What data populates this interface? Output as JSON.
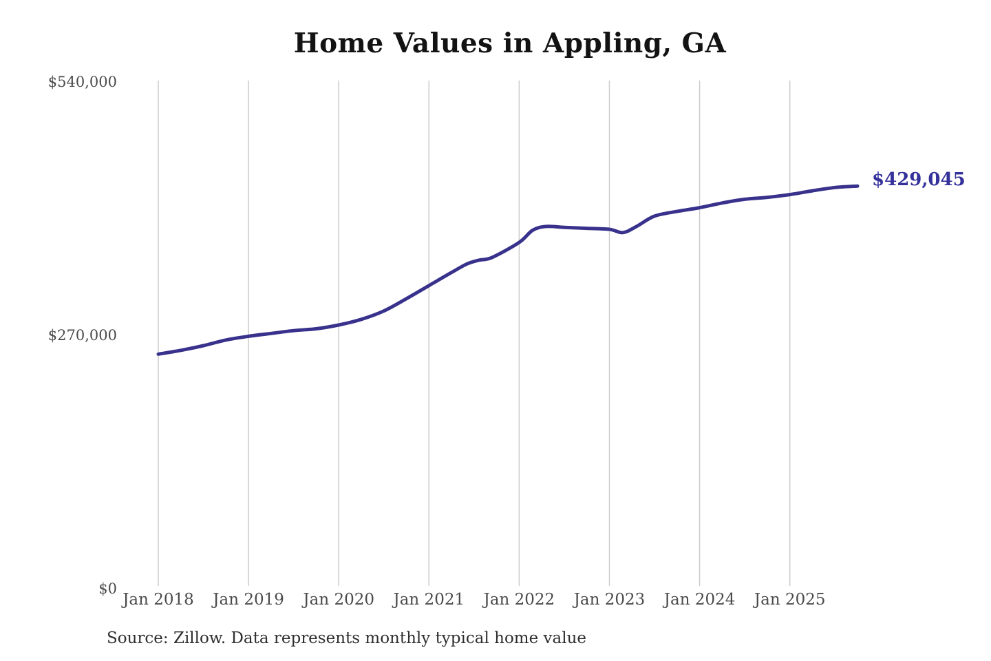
{
  "title": "Home Values in Appling, GA",
  "source_note": "Source: Zillow. Data represents monthly typical home value",
  "colors": {
    "line": "#38328c",
    "value_label": "#34319b",
    "grid": "#cccccc",
    "axis_label": "#4a4a4a",
    "title": "#131313",
    "source": "#2e2e2e",
    "background": "#ffffff"
  },
  "chart_data": {
    "type": "line",
    "title": "Home Values in Appling, GA",
    "xlabel": "",
    "ylabel": "",
    "grid": "vertical-only",
    "legend": false,
    "xlim": [
      2018.0,
      2026.0
    ],
    "ylim": [
      0,
      540000
    ],
    "y_ticks": [
      {
        "label": "$540,000",
        "value": 540000
      },
      {
        "label": "$270,000",
        "value": 270000
      },
      {
        "label": "$0",
        "value": 0
      }
    ],
    "x_ticks": [
      {
        "label": "Jan 2018",
        "year": 2018
      },
      {
        "label": "Jan 2019",
        "year": 2019
      },
      {
        "label": "Jan 2020",
        "year": 2020
      },
      {
        "label": "Jan 2021",
        "year": 2021
      },
      {
        "label": "Jan 2022",
        "year": 2022
      },
      {
        "label": "Jan 2023",
        "year": 2023
      },
      {
        "label": "Jan 2024",
        "year": 2024
      },
      {
        "label": "Jan 2025",
        "year": 2025
      }
    ],
    "end_label": "$429,045",
    "end_value": 429045,
    "series": [
      {
        "name": "Monthly typical home value",
        "points": [
          [
            2018.0,
            250000
          ],
          [
            2018.25,
            254000
          ],
          [
            2018.5,
            259000
          ],
          [
            2018.75,
            265000
          ],
          [
            2019.0,
            269000
          ],
          [
            2019.25,
            272000
          ],
          [
            2019.5,
            275000
          ],
          [
            2019.75,
            277000
          ],
          [
            2020.0,
            281000
          ],
          [
            2020.25,
            287000
          ],
          [
            2020.5,
            296000
          ],
          [
            2020.75,
            309000
          ],
          [
            2021.0,
            323000
          ],
          [
            2021.25,
            337000
          ],
          [
            2021.42,
            346000
          ],
          [
            2021.55,
            350000
          ],
          [
            2021.7,
            353000
          ],
          [
            2022.0,
            369000
          ],
          [
            2022.15,
            382000
          ],
          [
            2022.3,
            386000
          ],
          [
            2022.5,
            385000
          ],
          [
            2022.75,
            384000
          ],
          [
            2023.0,
            383000
          ],
          [
            2023.15,
            379500
          ],
          [
            2023.3,
            386000
          ],
          [
            2023.5,
            397000
          ],
          [
            2023.75,
            402000
          ],
          [
            2024.0,
            406000
          ],
          [
            2024.25,
            411000
          ],
          [
            2024.5,
            415000
          ],
          [
            2024.75,
            417000
          ],
          [
            2025.0,
            420000
          ],
          [
            2025.25,
            424000
          ],
          [
            2025.5,
            427500
          ],
          [
            2025.75,
            429045
          ]
        ]
      }
    ]
  }
}
